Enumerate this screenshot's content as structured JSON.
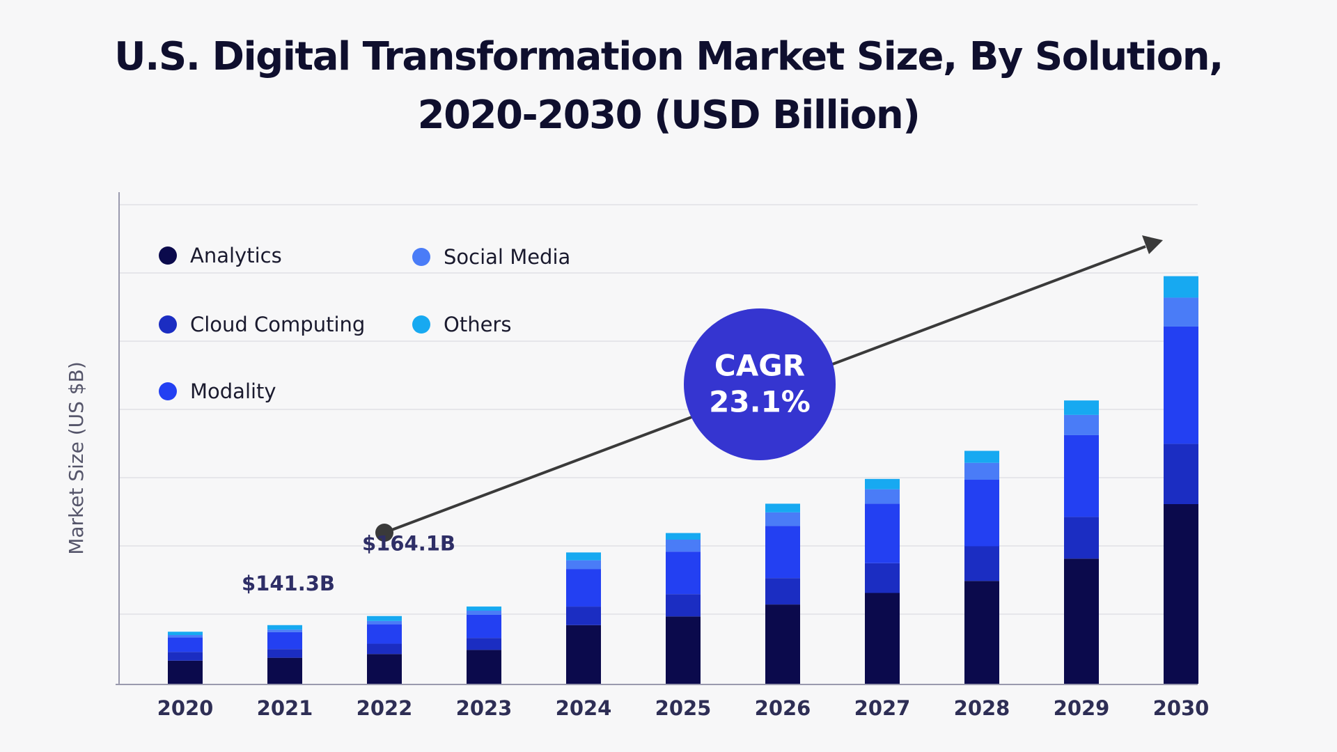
{
  "chart_data": {
    "type": "bar",
    "stacked": true,
    "title": "U.S. Digital Transformation Market Size, By Solution, 2020-2030 (USD Billion)",
    "y_label": "Market Size (US $B)",
    "categories": [
      "2020",
      "2021",
      "2022",
      "2023",
      "2024",
      "2025",
      "2026",
      "2027",
      "2028",
      "2029",
      "2030"
    ],
    "series": [
      {
        "name": "Analytics",
        "color": "#0b0a4c",
        "values": [
          56,
          63,
          72,
          82,
          142,
          163,
          192,
          220,
          249,
          303,
          435
        ]
      },
      {
        "name": "Cloud Computing",
        "color": "#1b2dc2",
        "values": [
          21,
          21,
          25,
          29,
          45,
          54,
          64,
          72,
          84,
          101,
          146
        ]
      },
      {
        "name": "Modality",
        "color": "#2340f2",
        "values": [
          35,
          41,
          47,
          56,
          91,
          103,
          126,
          144,
          161,
          198,
          284
        ]
      },
      {
        "name": "Social Media",
        "color": "#4a7cf7",
        "values": [
          6,
          6,
          8,
          10,
          21,
          29,
          33,
          35,
          41,
          49,
          70
        ]
      },
      {
        "name": "Others",
        "color": "#17a9f1",
        "values": [
          8,
          11,
          12,
          10,
          19,
          16,
          21,
          25,
          29,
          35,
          52
        ]
      }
    ],
    "ylim": [
      0,
      1160
    ],
    "annotations": [
      {
        "text": "$141.3B",
        "category": "2021"
      },
      {
        "text": "$164.1B",
        "category": "2022"
      }
    ],
    "cagr": {
      "label": "CAGR",
      "value": "23.1%"
    }
  }
}
